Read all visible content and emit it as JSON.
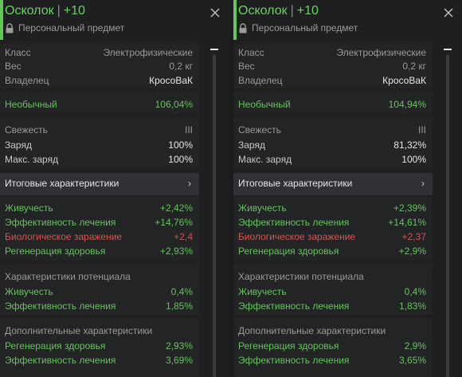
{
  "panels": [
    {
      "title": "Осколок",
      "title_sep": "|",
      "title_level": "+10",
      "subtitle": "Персональный предмет",
      "base": [
        {
          "label": "Класс",
          "value": "Электрофизические"
        },
        {
          "label": "Вес",
          "value": "0,2 кг"
        },
        {
          "label": "Владелец",
          "value": "КросоВаК"
        }
      ],
      "rarity": {
        "label": "Необычный",
        "value": "106,04%"
      },
      "condition": [
        {
          "label": "Свежесть",
          "value": "III"
        },
        {
          "label": "Заряд",
          "value": "100%"
        },
        {
          "label": "Макс. заряд",
          "value": "100%"
        }
      ],
      "total_link": "Итоговые характеристики",
      "totals": [
        {
          "label": "Живучесть",
          "value": "+2,42%",
          "color": "green"
        },
        {
          "label": "Эффективность лечения",
          "value": "+14,76%",
          "color": "green"
        },
        {
          "label": "Биологическое заражение",
          "value": "+2,4",
          "color": "red"
        },
        {
          "label": "Регенерация здоровья",
          "value": "+2,93%",
          "color": "green"
        }
      ],
      "potential_header": "Характеристики потенциала",
      "potential": [
        {
          "label": "Живучесть",
          "value": "0,4%"
        },
        {
          "label": "Эффективность лечения",
          "value": "1,85%"
        }
      ],
      "additional_header": "Дополнительные характеристики",
      "additional": [
        {
          "label": "Регенерация здоровья",
          "value": "2,93%"
        },
        {
          "label": "Эффективность лечения",
          "value": "3,69%"
        }
      ]
    },
    {
      "title": "Осколок",
      "title_sep": "|",
      "title_level": "+10",
      "subtitle": "Персональный предмет",
      "base": [
        {
          "label": "Класс",
          "value": "Электрофизические"
        },
        {
          "label": "Вес",
          "value": "0,2 кг"
        },
        {
          "label": "Владелец",
          "value": "КросоВаК"
        }
      ],
      "rarity": {
        "label": "Необычный",
        "value": "104,94%"
      },
      "condition": [
        {
          "label": "Свежесть",
          "value": "III"
        },
        {
          "label": "Заряд",
          "value": "81,32%"
        },
        {
          "label": "Макс. заряд",
          "value": "100%"
        }
      ],
      "total_link": "Итоговые характеристики",
      "totals": [
        {
          "label": "Живучесть",
          "value": "+2,39%",
          "color": "green"
        },
        {
          "label": "Эффективность лечения",
          "value": "+14,61%",
          "color": "green"
        },
        {
          "label": "Биологическое заражение",
          "value": "+2,37",
          "color": "red"
        },
        {
          "label": "Регенерация здоровья",
          "value": "+2,9%",
          "color": "green"
        }
      ],
      "potential_header": "Характеристики потенциала",
      "potential": [
        {
          "label": "Живучесть",
          "value": "0,4%"
        },
        {
          "label": "Эффективность лечения",
          "value": "1,83%"
        }
      ],
      "additional_header": "Дополнительные характеристики",
      "additional": [
        {
          "label": "Регенерация здоровья",
          "value": "2,9%"
        },
        {
          "label": "Эффективность лечения",
          "value": "3,65%"
        }
      ]
    }
  ],
  "colors": {
    "accent": "#66c35d",
    "negative": "#d9534f",
    "text": "#e6e6e6",
    "muted": "#9a9a9a"
  },
  "icons": {
    "close": "close-icon",
    "lock": "lock-icon",
    "chevron": "chevron-right-icon"
  }
}
